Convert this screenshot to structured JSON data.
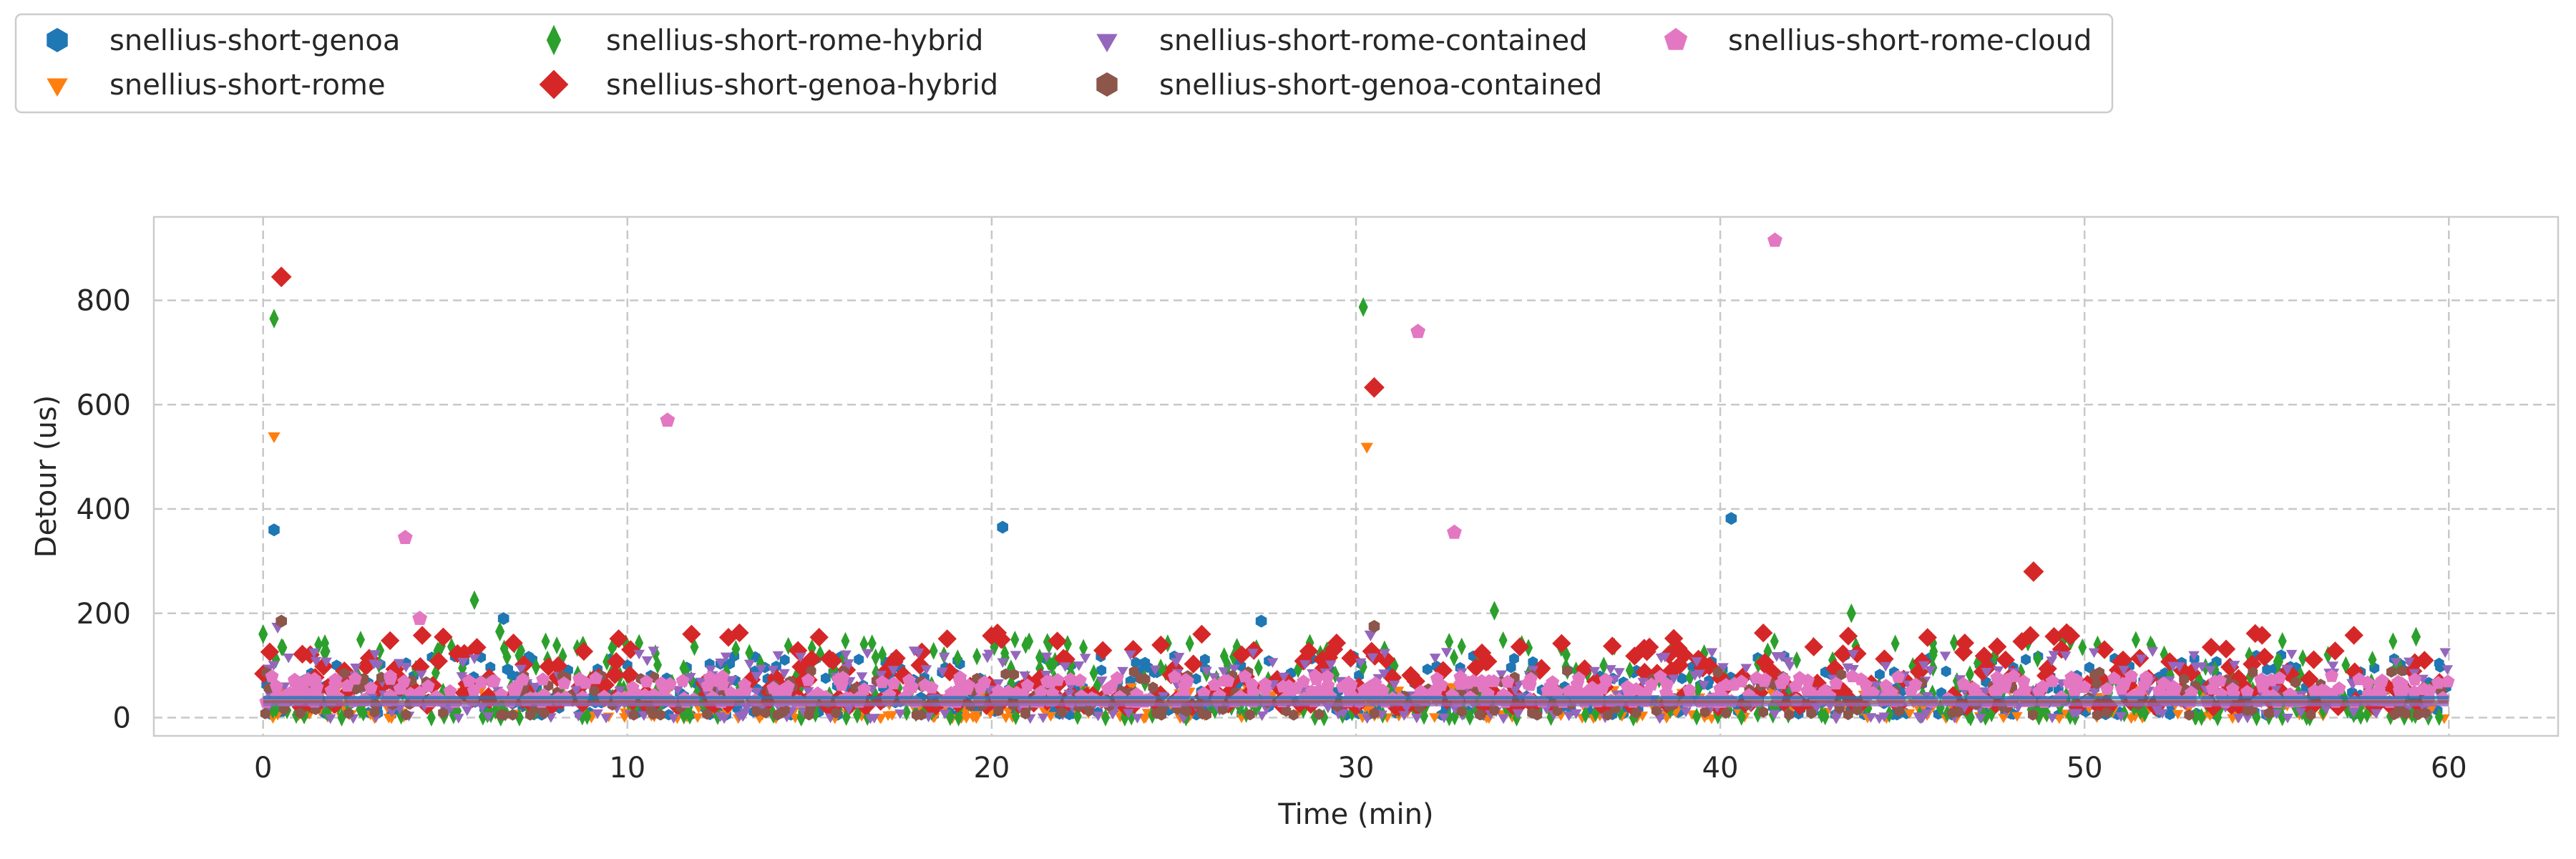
{
  "chart_data": {
    "type": "scatter",
    "title": "",
    "xlabel": "Time (min)",
    "ylabel": "Detour (us)",
    "xlim": [
      -3,
      63
    ],
    "ylim": [
      -35,
      960
    ],
    "xticks": [
      0,
      10,
      20,
      30,
      40,
      50,
      60
    ],
    "yticks": [
      0,
      200,
      400,
      600,
      800
    ],
    "grid": true,
    "legend_position": "top-left, outside plot, 4 columns",
    "series": [
      {
        "name": "snellius-short-genoa",
        "color": "#1f77b4",
        "marker": "hexagon",
        "baseline": [
          5,
          120
        ],
        "highlights": [
          {
            "x": 0.3,
            "y": 360
          },
          {
            "x": 6.6,
            "y": 190
          },
          {
            "x": 20.3,
            "y": 365
          },
          {
            "x": 27.4,
            "y": 185
          },
          {
            "x": 40.3,
            "y": 382
          }
        ]
      },
      {
        "name": "snellius-short-rome",
        "color": "#ff7f0e",
        "marker": "triangle-down",
        "baseline": [
          0,
          60
        ],
        "highlights": [
          {
            "x": 0.3,
            "y": 540
          },
          {
            "x": 30.3,
            "y": 520
          }
        ]
      },
      {
        "name": "snellius-short-rome-hybrid",
        "color": "#2ca02c",
        "marker": "thin-diamond",
        "baseline": [
          0,
          150
        ],
        "highlights": [
          {
            "x": 0.0,
            "y": 160
          },
          {
            "x": 0.3,
            "y": 765
          },
          {
            "x": 5.8,
            "y": 225
          },
          {
            "x": 6.5,
            "y": 165
          },
          {
            "x": 30.2,
            "y": 787
          },
          {
            "x": 33.8,
            "y": 205
          },
          {
            "x": 43.6,
            "y": 200
          },
          {
            "x": 59.1,
            "y": 155
          }
        ]
      },
      {
        "name": "snellius-short-genoa-hybrid",
        "color": "#d62728",
        "marker": "diamond",
        "baseline": [
          20,
          165
        ],
        "highlights": [
          {
            "x": 0.5,
            "y": 845
          },
          {
            "x": 30.5,
            "y": 633
          },
          {
            "x": 48.6,
            "y": 280
          }
        ]
      },
      {
        "name": "snellius-short-rome-contained",
        "color": "#9467bd",
        "marker": "triangle-down",
        "baseline": [
          0,
          130
        ],
        "highlights": [
          {
            "x": 0.4,
            "y": 175
          },
          {
            "x": 30.4,
            "y": 160
          }
        ]
      },
      {
        "name": "snellius-short-genoa-contained",
        "color": "#8c564b",
        "marker": "hexagon",
        "baseline": [
          5,
          90
        ],
        "highlights": [
          {
            "x": 0.5,
            "y": 185
          },
          {
            "x": 30.5,
            "y": 175
          }
        ]
      },
      {
        "name": "snellius-short-rome-cloud",
        "color": "#e377c2",
        "marker": "pentagon",
        "baseline": [
          30,
          80
        ],
        "highlights": [
          {
            "x": 3.9,
            "y": 345
          },
          {
            "x": 4.3,
            "y": 190
          },
          {
            "x": 11.1,
            "y": 570
          },
          {
            "x": 31.7,
            "y": 740
          },
          {
            "x": 32.7,
            "y": 355
          },
          {
            "x": 41.5,
            "y": 915
          }
        ]
      }
    ],
    "mean_lines": [
      {
        "color": "#1f77b4",
        "y": 38
      },
      {
        "color": "#8c564b",
        "y": 30
      },
      {
        "color": "#9467bd",
        "y": 25
      }
    ]
  }
}
